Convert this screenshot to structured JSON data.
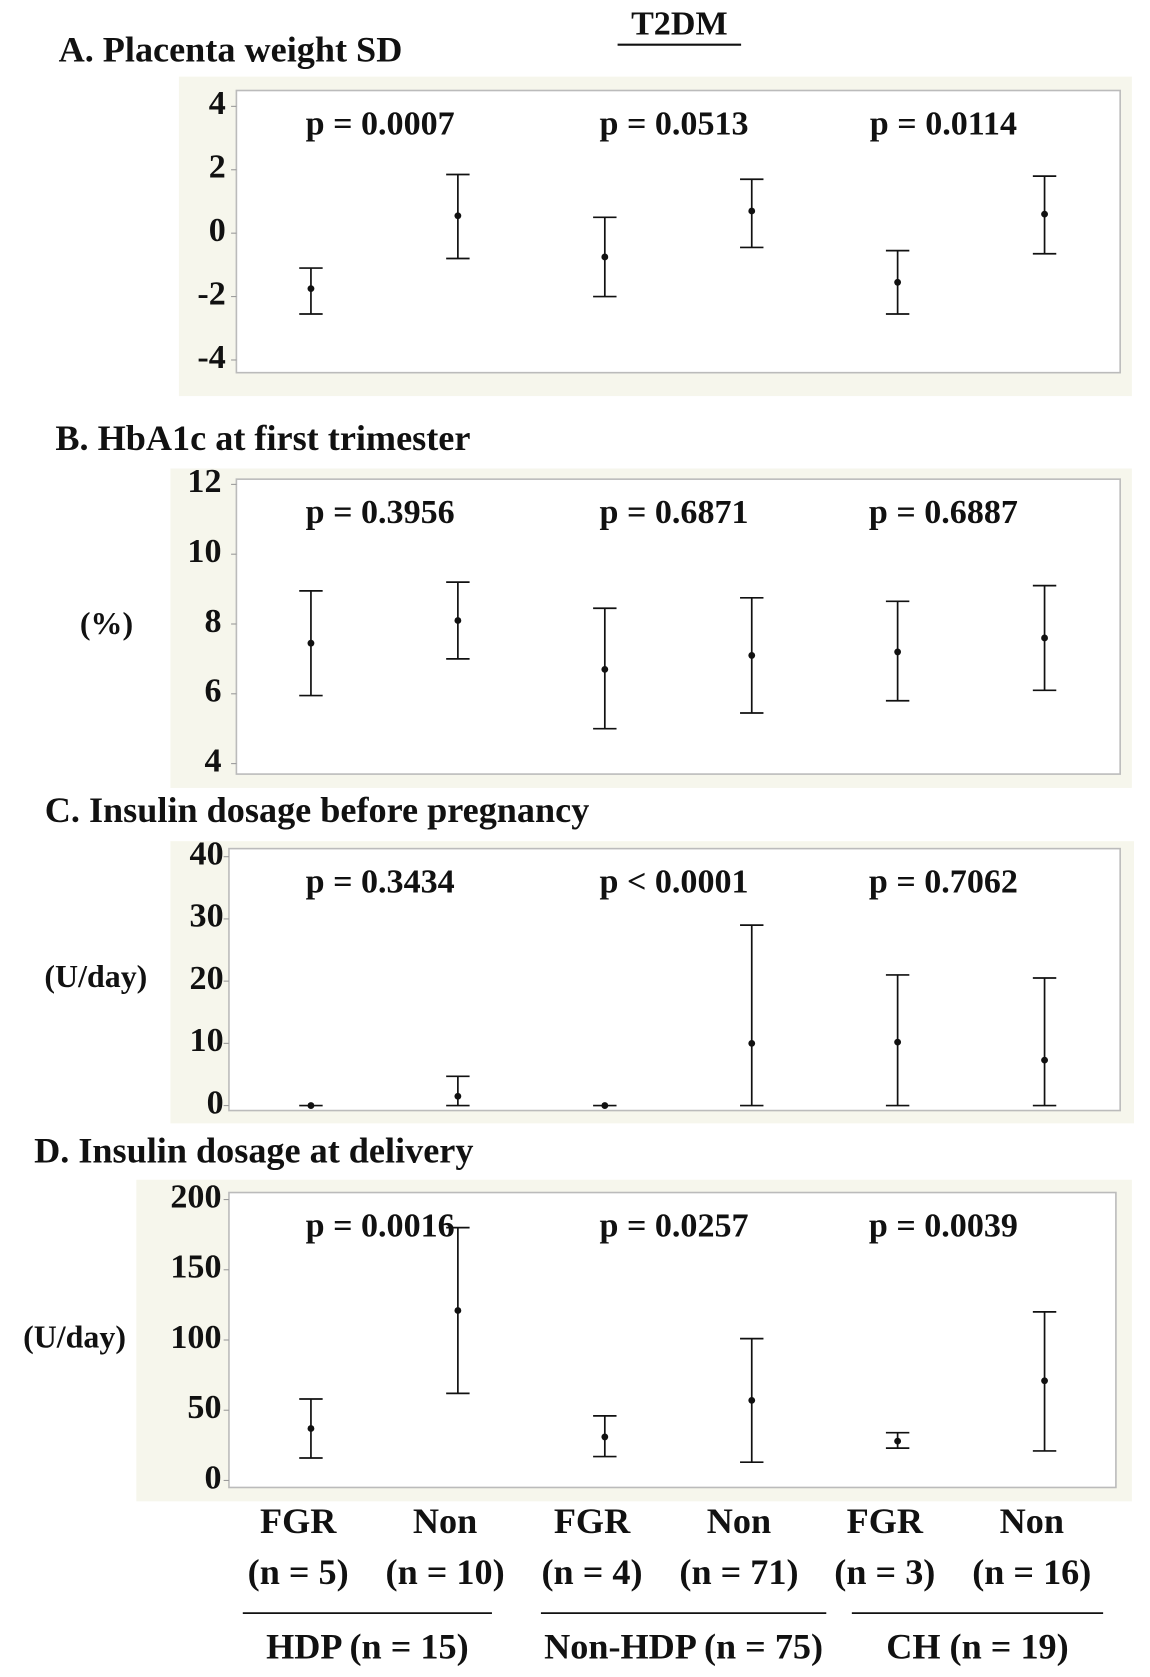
{
  "title": "T2DM",
  "x_labels": [
    {
      "label": "FGR",
      "n": "(n = 5)"
    },
    {
      "label": "Non",
      "n": "(n = 10)"
    },
    {
      "label": "FGR",
      "n": "(n = 4)"
    },
    {
      "label": "Non",
      "n": "(n = 71)"
    },
    {
      "label": "FGR",
      "n": "(n = 3)"
    },
    {
      "label": "Non",
      "n": "(n = 16)"
    }
  ],
  "groups": [
    "HDP (n = 15)",
    "Non-HDP (n = 75)",
    "CH (n = 19)"
  ],
  "chart_data": [
    {
      "type": "errorbar",
      "title": "A. Placenta weight SD",
      "ylim": [
        -4.4,
        4.5
      ],
      "yticks": [
        -4,
        -2,
        0,
        2,
        4
      ],
      "annotations": [
        "p = 0.0007",
        "p = 0.0513",
        "p = 0.0114"
      ],
      "values": [
        -1.75,
        0.55,
        -0.75,
        0.7,
        -1.55,
        0.6
      ],
      "lower": [
        -2.55,
        -0.8,
        -2.0,
        -0.45,
        -2.55,
        -0.65
      ],
      "upper": [
        -1.1,
        1.85,
        0.5,
        1.7,
        -0.55,
        1.8
      ]
    },
    {
      "type": "errorbar",
      "title": "B. HbA1c at first trimester",
      "y_label": "(%)",
      "ylim": [
        3.7,
        12.15
      ],
      "yticks": [
        4,
        6,
        8,
        10,
        12
      ],
      "annotations": [
        "p = 0.3956",
        "p = 0.6871",
        "p = 0.6887"
      ],
      "values": [
        7.45,
        8.1,
        6.7,
        7.1,
        7.2,
        7.6
      ],
      "lower": [
        5.95,
        7.0,
        5.0,
        5.45,
        5.8,
        6.1
      ],
      "upper": [
        8.95,
        9.2,
        8.45,
        8.75,
        8.65,
        9.1
      ]
    },
    {
      "type": "errorbar",
      "title": "C. Insulin dosage before pregnancy",
      "y_label": "(U/day)",
      "ylim": [
        -0.8,
        41.3
      ],
      "yticks": [
        0,
        10,
        20,
        30,
        40
      ],
      "annotations": [
        "p = 0.3434",
        "p <  0.0001",
        "p = 0.7062"
      ],
      "values": [
        0,
        1.5,
        0,
        10,
        10.2,
        7.3
      ],
      "lower": [
        0,
        0,
        0,
        0,
        0,
        0
      ],
      "upper": [
        0,
        4.7,
        0,
        29,
        21,
        20.5
      ]
    },
    {
      "type": "errorbar",
      "title": "D. Insulin dosage at delivery",
      "y_label": "(U/day)",
      "ylim": [
        -5,
        205
      ],
      "yticks": [
        0,
        50,
        100,
        150,
        200
      ],
      "annotations": [
        "p = 0.0016",
        "p = 0.0257",
        "p = 0.0039"
      ],
      "values": [
        37,
        121,
        31,
        57,
        28,
        71
      ],
      "lower": [
        16,
        62,
        17,
        13,
        23,
        21
      ],
      "upper": [
        58,
        180,
        46,
        101,
        34,
        120
      ]
    }
  ]
}
